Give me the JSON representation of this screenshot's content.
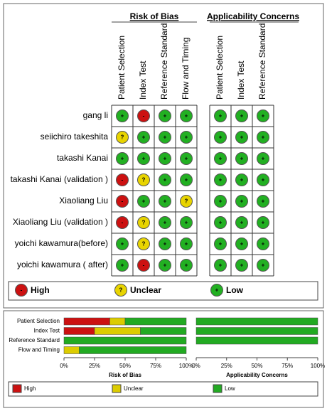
{
  "grid": {
    "headers": [
      "Risk of Bias",
      "Applicability Concerns"
    ],
    "risk_columns": [
      "Patient Selection",
      "Index Test",
      "Reference Standard",
      "Flow and Timing"
    ],
    "applicability_columns": [
      "Patient Selection",
      "Index Test",
      "Reference Standard"
    ],
    "rows": [
      {
        "study": "gang li",
        "risk": [
          "+",
          "-",
          "+",
          "+"
        ],
        "applicability": [
          "+",
          "+",
          "+"
        ]
      },
      {
        "study": "seiichiro takeshita",
        "risk": [
          "?",
          "+",
          "+",
          "+"
        ],
        "applicability": [
          "+",
          "+",
          "+"
        ]
      },
      {
        "study": "takashi Kanai",
        "risk": [
          "+",
          "+",
          "+",
          "+"
        ],
        "applicability": [
          "+",
          "+",
          "+"
        ]
      },
      {
        "study": "takashi Kanai (validation )",
        "risk": [
          "-",
          "?",
          "+",
          "+"
        ],
        "applicability": [
          "+",
          "+",
          "+"
        ]
      },
      {
        "study": "Xiaoliang Liu",
        "risk": [
          "-",
          "+",
          "+",
          "?"
        ],
        "applicability": [
          "+",
          "+",
          "+"
        ]
      },
      {
        "study": "Xiaoliang Liu (validation )",
        "risk": [
          "-",
          "?",
          "+",
          "+"
        ],
        "applicability": [
          "+",
          "+",
          "+"
        ]
      },
      {
        "study": "yoichi kawamura(before)",
        "risk": [
          "+",
          "?",
          "+",
          "+"
        ],
        "applicability": [
          "+",
          "+",
          "+"
        ]
      },
      {
        "study": "yoichi kawamura ( after)",
        "risk": [
          "+",
          "-",
          "+",
          "+"
        ],
        "applicability": [
          "+",
          "+",
          "+"
        ]
      }
    ],
    "legend": [
      {
        "symbol": "-",
        "label": "High",
        "color": "#cc1111"
      },
      {
        "symbol": "?",
        "label": "Unclear",
        "color": "#e8d400"
      },
      {
        "symbol": "+",
        "label": "Low",
        "color": "#22b022"
      }
    ]
  },
  "chart_data": [
    {
      "type": "stacked-bar",
      "xlabel": "Risk of Bias",
      "categories": [
        "Patient Selection",
        "Index Test",
        "Reference Standard",
        "Flow and Timing"
      ],
      "series": [
        {
          "name": "High",
          "color": "#cc1111",
          "values": [
            37.5,
            25,
            0,
            0
          ]
        },
        {
          "name": "Unclear",
          "color": "#dccc00",
          "values": [
            12.5,
            37.5,
            0,
            12.5
          ]
        },
        {
          "name": "Low",
          "color": "#22aa22",
          "values": [
            50,
            37.5,
            100,
            87.5
          ]
        }
      ],
      "xlim": [
        0,
        100
      ],
      "xticks": [
        {
          "value": 0,
          "label": "0%"
        },
        {
          "value": 25,
          "label": "25%"
        },
        {
          "value": 50,
          "label": "50%"
        },
        {
          "value": 75,
          "label": "75%"
        },
        {
          "value": 100,
          "label": "100%"
        }
      ]
    },
    {
      "type": "stacked-bar",
      "xlabel": "Applicability Concerns",
      "categories": [
        null,
        null,
        null,
        null
      ],
      "series": [
        {
          "color": "#22aa22",
          "values": [
            100,
            100,
            100,
            null
          ]
        }
      ],
      "xlim": [
        0,
        100
      ],
      "xticks": [
        {
          "value": 0,
          "label": "0%"
        },
        {
          "value": 25,
          "label": "25%"
        },
        {
          "value": 50,
          "label": "50%"
        },
        {
          "value": 75,
          "label": "75%"
        },
        {
          "value": 100,
          "label": "100%"
        }
      ]
    }
  ]
}
